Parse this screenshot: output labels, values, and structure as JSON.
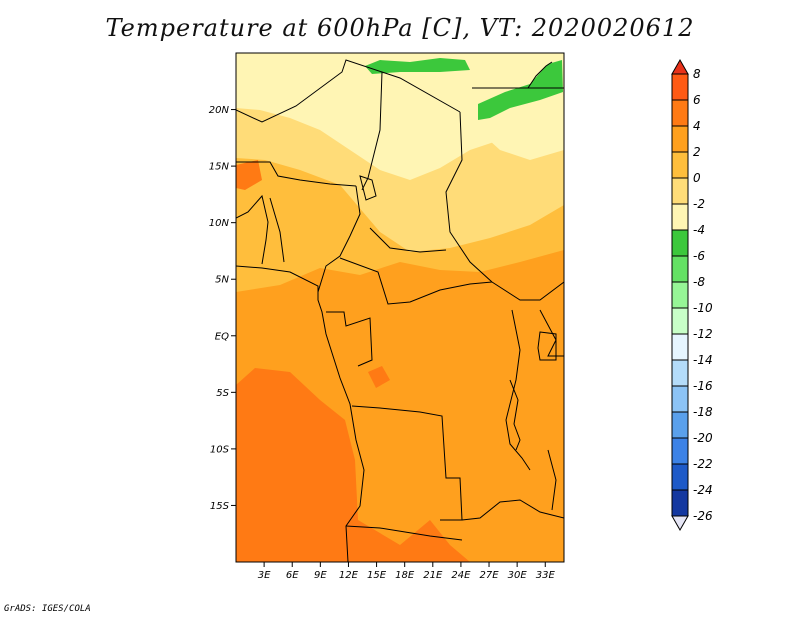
{
  "title": "Temperature at 600hPa [C], VT: 2020020612",
  "credit": "GrADS: IGES/COLA",
  "y_ticks": [
    {
      "label": "20N",
      "lat": 20
    },
    {
      "label": "15N",
      "lat": 15
    },
    {
      "label": "10N",
      "lat": 10
    },
    {
      "label": "5N",
      "lat": 5
    },
    {
      "label": "EQ",
      "lat": 0
    },
    {
      "label": "5S",
      "lat": -5
    },
    {
      "label": "10S",
      "lat": -10
    },
    {
      "label": "15S",
      "lat": -15
    }
  ],
  "x_ticks": [
    {
      "label": "3E",
      "lon": 3
    },
    {
      "label": "6E",
      "lon": 6
    },
    {
      "label": "9E",
      "lon": 9
    },
    {
      "label": "12E",
      "lon": 12
    },
    {
      "label": "15E",
      "lon": 15
    },
    {
      "label": "18E",
      "lon": 18
    },
    {
      "label": "21E",
      "lon": 21
    },
    {
      "label": "24E",
      "lon": 24
    },
    {
      "label": "27E",
      "lon": 27
    },
    {
      "label": "30E",
      "lon": 30
    },
    {
      "label": "33E",
      "lon": 33
    }
  ],
  "colorbar": {
    "labels": [
      "8",
      "6",
      "4",
      "2",
      "0",
      "-2",
      "-4",
      "-6",
      "-8",
      "-10",
      "-12",
      "-14",
      "-16",
      "-18",
      "-20",
      "-22",
      "-24",
      "-26"
    ],
    "colors": [
      "#e8321a",
      "#ff5a14",
      "#ff7a14",
      "#ffa01e",
      "#ffbe3c",
      "#ffdc78",
      "#fff5b4",
      "#3cc83c",
      "#64e164",
      "#96f596",
      "#c8ffc8",
      "#e6f5ff",
      "#b4dcfa",
      "#8cc3f5",
      "#5aa0eb",
      "#3c82e6",
      "#1e5ac8",
      "#1438a0",
      "#000a78"
    ]
  },
  "map": {
    "lon_range": [
      0,
      35
    ],
    "lat_range": [
      -20,
      25
    ]
  }
}
